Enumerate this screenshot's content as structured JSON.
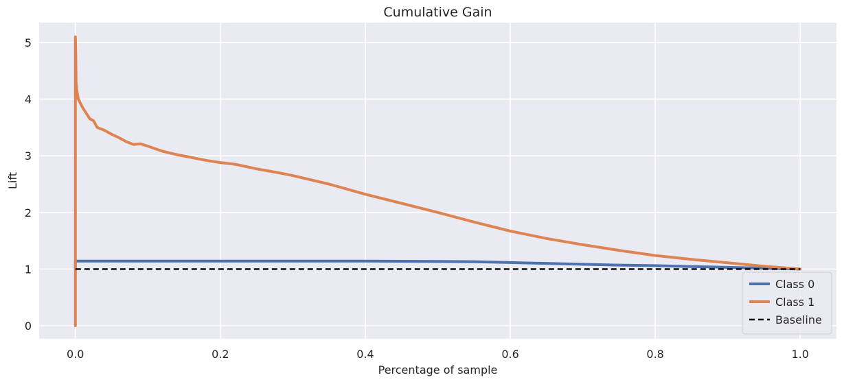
{
  "chart_data": {
    "type": "line",
    "title": "Cumulative Gain",
    "xlabel": "Percentage of sample",
    "ylabel": "Lift",
    "xlim": [
      -0.05,
      1.05
    ],
    "ylim": [
      -0.23,
      5.35
    ],
    "xticks": [
      0.0,
      0.2,
      0.4,
      0.6,
      0.8,
      1.0
    ],
    "xtick_labels": [
      "0.0",
      "0.2",
      "0.4",
      "0.6",
      "0.8",
      "1.0"
    ],
    "yticks": [
      0,
      1,
      2,
      3,
      4,
      5
    ],
    "ytick_labels": [
      "0",
      "1",
      "2",
      "3",
      "4",
      "5"
    ],
    "grid": true,
    "legend_position": "bottom-right",
    "series": [
      {
        "name": "Class 0",
        "color": "#4c72b0",
        "style": "solid",
        "x": [
          0.0,
          0.0,
          0.001,
          0.1,
          0.2,
          0.3,
          0.4,
          0.5,
          0.55,
          0.6,
          0.65,
          0.7,
          0.75,
          0.8,
          0.85,
          0.9,
          0.95,
          1.0
        ],
        "y": [
          1.0,
          1.14,
          1.14,
          1.14,
          1.14,
          1.14,
          1.14,
          1.135,
          1.13,
          1.115,
          1.1,
          1.085,
          1.07,
          1.06,
          1.045,
          1.03,
          1.015,
          1.0
        ]
      },
      {
        "name": "Class 1",
        "color": "#dd8452",
        "style": "solid",
        "x": [
          0.0,
          0.0,
          0.0005,
          0.001,
          0.002,
          0.004,
          0.006,
          0.008,
          0.01,
          0.015,
          0.02,
          0.025,
          0.03,
          0.04,
          0.05,
          0.06,
          0.07,
          0.08,
          0.09,
          0.1,
          0.12,
          0.14,
          0.16,
          0.18,
          0.2,
          0.22,
          0.25,
          0.28,
          0.3,
          0.35,
          0.4,
          0.45,
          0.5,
          0.55,
          0.6,
          0.65,
          0.7,
          0.75,
          0.8,
          0.85,
          0.9,
          0.95,
          1.0
        ],
        "y": [
          0.0,
          5.1,
          4.8,
          4.3,
          4.15,
          4.0,
          3.95,
          3.9,
          3.85,
          3.75,
          3.65,
          3.62,
          3.5,
          3.45,
          3.38,
          3.32,
          3.25,
          3.2,
          3.21,
          3.17,
          3.08,
          3.02,
          2.97,
          2.92,
          2.88,
          2.85,
          2.77,
          2.7,
          2.65,
          2.5,
          2.32,
          2.16,
          2.0,
          1.83,
          1.67,
          1.54,
          1.43,
          1.33,
          1.24,
          1.17,
          1.11,
          1.05,
          1.0
        ]
      },
      {
        "name": "Baseline",
        "color": "#000000",
        "style": "dashed",
        "x": [
          0.0,
          1.0
        ],
        "y": [
          1.0,
          1.0
        ]
      }
    ]
  }
}
